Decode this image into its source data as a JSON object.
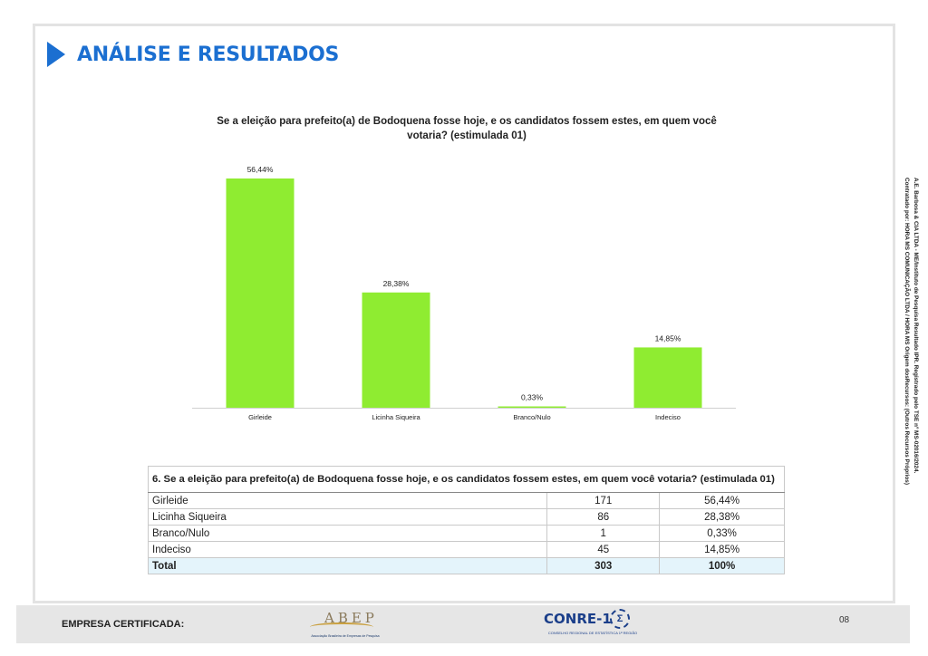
{
  "page": {
    "header_title": "ANÁLISE E RESULTADOS",
    "side_note_line1": "A.E. Barbosa & CIA LTDA - ME/Instituto de Pesquisa Resultado IPR. Registrado pelo TSE nº MS-02016/2024.",
    "side_note_line2": "Contratado por: HORA MS COMUNICAÇÃO LTDA / HORA MS Origem dosRecursos: (Outros Recursos Próprios)"
  },
  "chart_data": {
    "type": "bar",
    "title": "Se a eleição para prefeito(a) de Bodoquena fosse hoje, e os candidatos fossem estes, em quem você votaria? (estimulada 01)",
    "categories": [
      "Girleide",
      "Licinha Siqueira",
      "Branco/Nulo",
      "Indeciso"
    ],
    "values": [
      56.44,
      28.38,
      0.33,
      14.85
    ],
    "value_labels": [
      "56,44%",
      "28,38%",
      "0,33%",
      "14,85%"
    ],
    "bar_color": "#8fec31",
    "ylim": [
      0,
      60
    ],
    "grid": false,
    "legend": "none"
  },
  "table": {
    "question": "6. Se a eleição para prefeito(a) de Bodoquena fosse hoje, e os candidatos fossem estes, em quem você votaria? (estimulada 01)",
    "rows": [
      {
        "label": "Girleide",
        "count": "171",
        "pct": "56,44%"
      },
      {
        "label": "Licinha Siqueira",
        "count": "86",
        "pct": "28,38%"
      },
      {
        "label": "Branco/Nulo",
        "count": "1",
        "pct": "0,33%"
      },
      {
        "label": "Indeciso",
        "count": "45",
        "pct": "14,85%"
      }
    ],
    "total": {
      "label": "Total",
      "count": "303",
      "pct": "100%"
    }
  },
  "footer": {
    "certified_label": "EMPRESA CERTIFICADA:",
    "abep_logo_text": "ABEP",
    "abep_logo_subtitle": "Associação Brasileira de Empresas de Pesquisa",
    "conre_logo_text": "CONRE-1",
    "conre_logo_symbol": "Σ",
    "conre_logo_subtitle": "CONSELHO REGIONAL DE ESTATÍSTICA 1ª REGIÃO",
    "page_number": "08"
  }
}
